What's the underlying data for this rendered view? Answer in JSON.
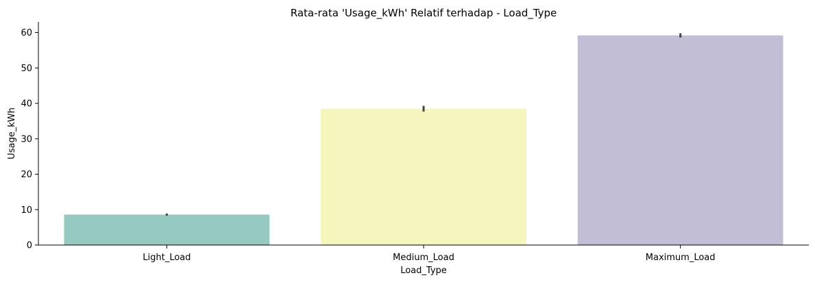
{
  "chart_data": {
    "type": "bar",
    "title": "Rata-rata 'Usage_kWh' Relatif terhadap - Load_Type",
    "xlabel": "Load_Type",
    "ylabel": "Usage_kWh",
    "categories": [
      "Light_Load",
      "Medium_Load",
      "Maximum_Load"
    ],
    "values": [
      8.6,
      38.5,
      59.2
    ],
    "error_low": [
      8.3,
      37.7,
      58.6
    ],
    "error_high": [
      8.9,
      39.3,
      59.8
    ],
    "colors": [
      "#96c9c0",
      "#f5f5bc",
      "#c1bed6"
    ],
    "error_color": "#444444",
    "ylim": [
      0,
      63
    ],
    "yticks": [
      0,
      10,
      20,
      30,
      40,
      50,
      60
    ],
    "grid": false,
    "legend": "none"
  }
}
